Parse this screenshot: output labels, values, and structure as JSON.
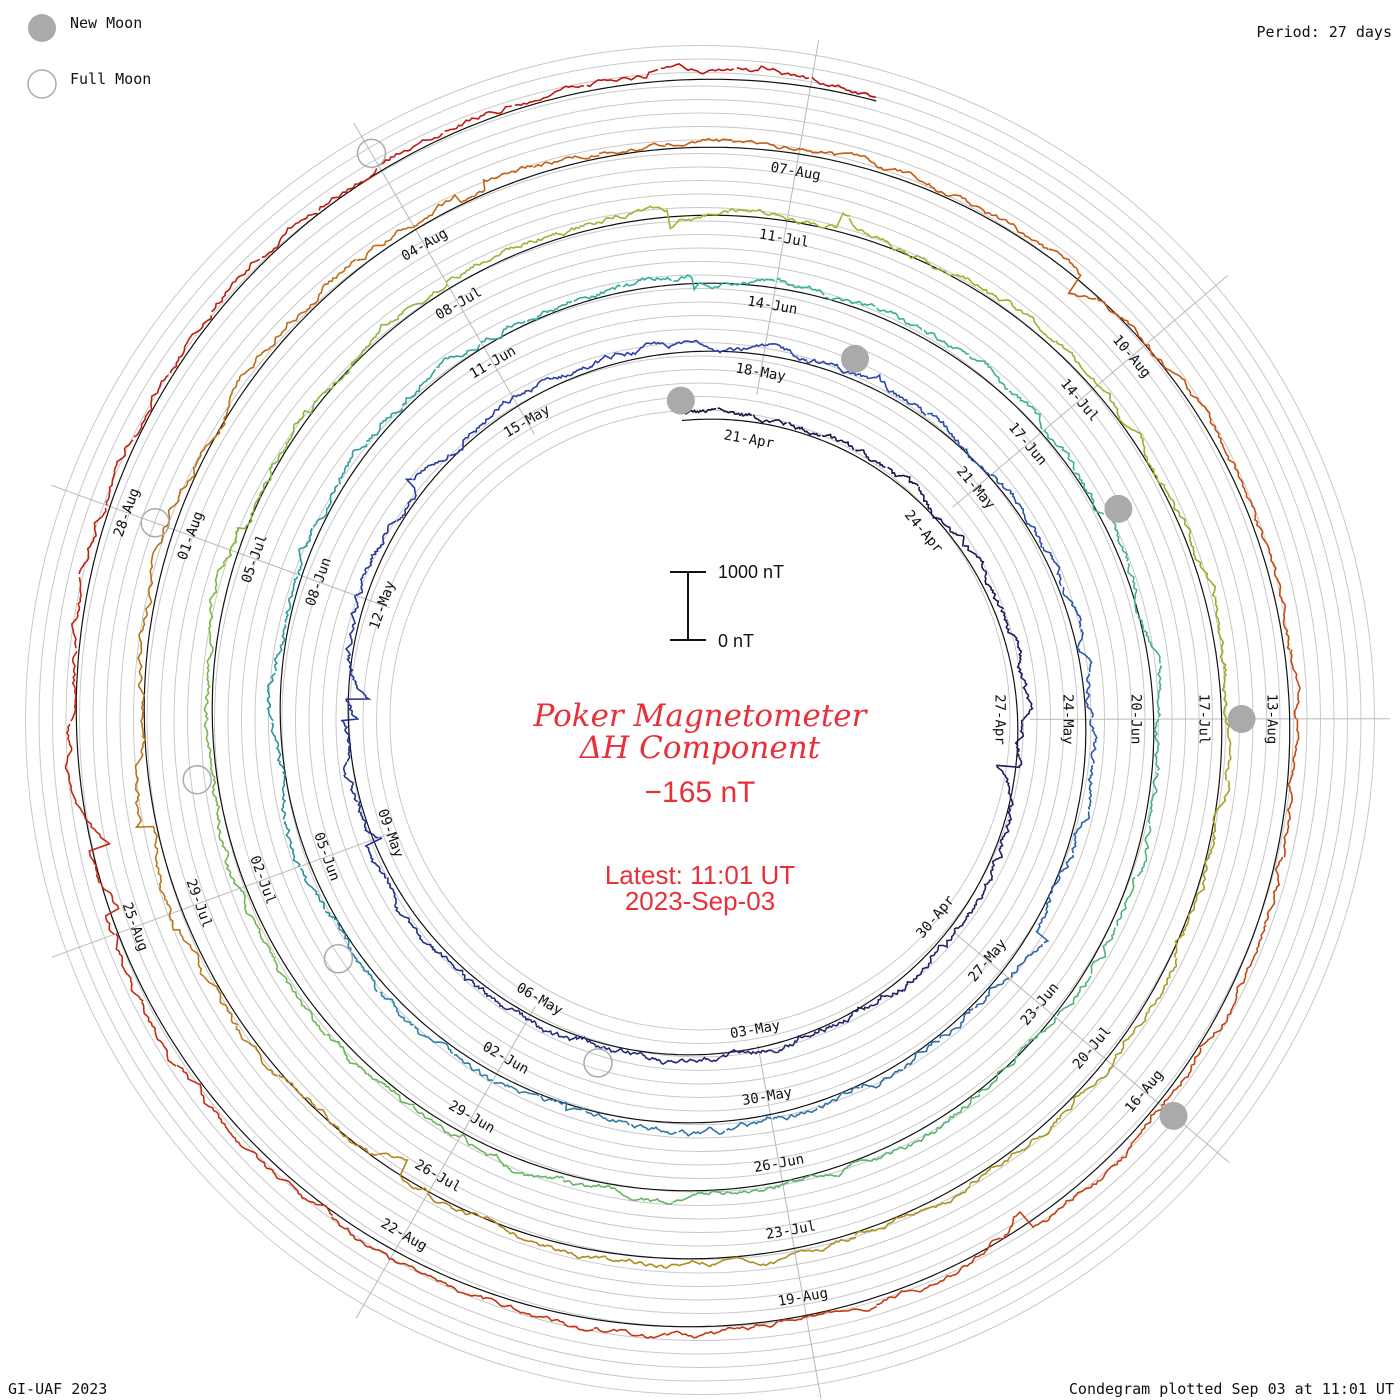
{
  "legend": {
    "new_moon_label": "New Moon",
    "full_moon_label": "Full Moon",
    "new_moon_color": "#aaaaaa",
    "full_moon_color": "#aaaaaa"
  },
  "header": {
    "period": "Period: 27 days"
  },
  "footer": {
    "credit": "GI-UAF 2023",
    "plotted": "Condegram plotted Sep 03 at 11:01 UT"
  },
  "title": {
    "line1": "Poker Magnetometer",
    "line2": "ΔH Component",
    "current_value": "−165 nT",
    "latest_line1": "Latest: 11:01 UT",
    "latest_line2": "2023-Sep-03",
    "color": "#e8303a"
  },
  "scale_bar": {
    "top_label": "1000 nT",
    "bottom_label": "0 nT"
  },
  "chart_data": {
    "type": "line",
    "subtype": "spiral condegram",
    "period_days": 27,
    "start_date": "2023-04-20",
    "end_date": "2023-09-03",
    "turns": [
      {
        "date_labels": [
          "21-Apr",
          "24-Apr",
          "27-Apr",
          "30-Apr",
          "03-May",
          "06-May",
          "09-May",
          "12-May",
          "15-May"
        ],
        "color": "#1a1040"
      },
      {
        "date_labels": [
          "18-May",
          "21-May",
          "24-May",
          "27-May",
          "30-May",
          "02-Jun",
          "05-Jun",
          "08-Jun",
          "11-Jun"
        ],
        "color": "#2a3fb0"
      },
      {
        "date_labels": [
          "14-Jun",
          "17-Jun",
          "20-Jun",
          "23-Jun",
          "26-Jun",
          "29-Jun",
          "02-Jul",
          "05-Jul",
          "08-Jul"
        ],
        "color": "#2fb39a"
      },
      {
        "date_labels": [
          "11-Jul",
          "14-Jul",
          "17-Jul",
          "20-Jul",
          "23-Jul",
          "26-Jul",
          "29-Jul",
          "01-Aug",
          "04-Aug"
        ],
        "color": "#9ab82a"
      },
      {
        "date_labels": [
          "07-Aug",
          "10-Aug",
          "13-Aug",
          "16-Aug",
          "19-Aug",
          "22-Aug",
          "25-Aug",
          "28-Aug"
        ],
        "color": "#c85a10"
      }
    ],
    "series_color_final": "#c01010",
    "new_moons": [
      "2023-04-20",
      "2023-05-19",
      "2023-06-18",
      "2023-07-17",
      "2023-08-16"
    ],
    "full_moons": [
      "2023-05-05",
      "2023-06-04",
      "2023-07-03",
      "2023-08-01",
      "2023-08-31"
    ],
    "scale_nT": [
      0,
      1000
    ]
  }
}
